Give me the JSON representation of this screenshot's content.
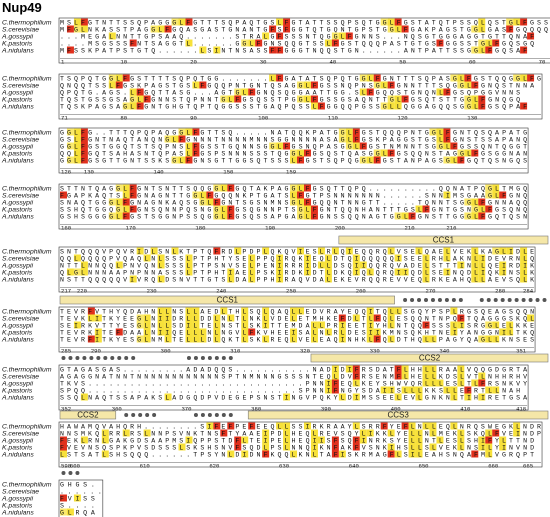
{
  "title": "Nup49",
  "species": [
    "C.thermophilium",
    "S.cerevisiae",
    "A.gossypii",
    "K.pastoris",
    "A.nidulans"
  ],
  "blocks": [
    {
      "rows": [
        "MSLFGTNTTSSQPAGGGLFGTTTSQPAQTGSLFGTATTSSQPSQTGGLFGSTATQTPSSQLQSTGLFGSSA",
        "MFGLNKASSTPAGGLFGQASGASTGNANTGFSFGGTQTGQNTGPSTGGLFGAKPAGSTGGLGASFGQQQQ",
        "...MEGALNNTTGPSAAQ.......STRALGFSSSNTQGGLFGNNS...NQSGTGGGAGGTGTTQNAF",
        "....MSGSSSFNTSAGGTL......GGLFGNSQQGTSSLFGSTQQQPASTGTGSFGGSSTGLFGQSGQ",
        "MFSSKPATPSTGTQ......LSINTNSASSFFGGGTNQQSTGN......ANTPATTSSGGLFGQSAF"
      ],
      "ruler": [
        1,
        10,
        20,
        30,
        40,
        50,
        60,
        70
      ]
    },
    {
      "rows": [
        "TSQPQTGGLFGSTTTTSQPQTGG.......LFGATATSQPQTGGLFGNTTTSQPASGLFGSTQQGGLFG",
        "QNQQTSSLFGSKPAGSTGSLFGQQPNTGNTQSAGGLFGSSNQPNSGLFGNNTTTSQGGLFGNQSTNNA",
        "QPQTG.AGS.LFGQTTASG...AGTGLFGNQSQGGAATTGG.SLFGQQSTGNQNLFGSQPGGVNNS",
        "TQSTGSSGSAGLFGNNSTQPNNTGLFGSQSSTPGGLFGSSGSAQNTTGLFGSQTSTTGGLFGNQGQ",
        "TQSKPAGSAGLFGNTGHGTQPTQGGSSSTGAQPQSSLFGGQQPGSSGLLQGGAGQQSGGLFGSQPAF"
      ],
      "ruler": [
        71,
        80,
        90,
        100,
        110,
        120,
        130
      ]
    },
    {
      "rows": [
        "GGLFG..TTTQPQPAQGGLFGTTSQ.....NATQQKPATGGLFGSTQQQPNTGGLFGNTQSQAPATG",
        "GSLFGNTNAQTANQNGLFGNNNTNNNNMNNSGGNNNNASAGLFGSKPAGGSTGSLFGNSTSSAPANQ",
        "GGLFGSTGGQTSTSQPNSLFGSSTGQNNSGGLFGSNQPASGGLFGSTNMNNTSGGLFGSSQNTQGGT",
        "QQLFGQTSAHASNTQPASLFGSPSNNNSSSTQGGLFGSQSTQASGGLFGSQQNSTAGGLFGSGGNAN",
        "GGLFGSGTTGNTSSKSGLFGNSGTTGGSQTSSSLFGSTSQPQGGLFGSTANPAGSGLFGQTQSNGQS"
      ],
      "ruler": [
        126,
        130,
        140,
        150,
        159
      ]
    },
    {
      "rows": [
        "STTNTQAGGLFGNTSNTTSQQGGLFGQTAKPAGGLFGSQTTQPQ..........QQNATPQGLTMGQ",
        "FGAPKAQTSLFGNAGNTTGGLFGQQNKPTGATSLFGTPSNNNNNNN......SNNIMSGAAGLFGNQ",
        "SNAQTGGGLFGNAGNKAQSGGLFGNTSGSNMNSGLFGQQNTNNGTT.....TQNNTSGGLFGNNAQQ",
        "SSHQTGGQGLFGNSQNNPQSNGGLFGSQGNNPTSGLFGNTQQNHANTTTGSLFGNTGSNGLFGSQNQ",
        "GSHSGGGGLFGSTSGGNPSSQGGLFGSQSSAPGAGLFGNSSQQNAGTGGLFGNSTTGGGLFGQTQSN"
      ],
      "ruler": [
        160,
        170,
        180,
        190,
        200,
        210,
        216
      ]
    },
    {
      "rows": [
        "SNTQQQVPQVRIDLSNLKTPTQFRDLPDPLQKQVIESLRLQIEQQRQLVSELQAELVEKLKAGLIDLE",
        "QQLQQQQPVQAQLNLSSSLPTPHTYSELPPQIRQKIEQLDTQIQQQQQISEELRHLAKNLIDEVRNLQ",
        "NTTLNNQQLPNVQNLSSSLPTPSNVSELPENIRRRIDLLDSQIIQQRQVADELSTTTINLLQEIRDIK",
        "QLGLNNNAAPNPNNASSSLPTPHTIAELPSKIRDKIDTLDKQIQLQRQIIQDLSEINQDLIQKINSLK",
        "NSTTQQQQQVIVRQLDSNVTTGTSLDALPPHIRAQVDALEKEVRQQREVVEQLRKEAHQLLAEVSQLK"
      ],
      "ruler": [
        217,
        220,
        230,
        240,
        250,
        260,
        270,
        280,
        284
      ],
      "annotations": [
        "CCS1"
      ]
    },
    {
      "rows": [
        "TEVRFVTHYQDAHNLLNSLLAEDLTHLSQLQAQLLEDVRAYEQQITQLLSGQYPSPLRGSQEAGSQQN",
        "TEVKLITKYEEGLNIIDRLLDDLNLTLNKLVDELETMHKEFDLTLFQLESQQNTNPQFTQAGGGSKQL",
        "SEIRKVTTYESGLNLLSDILTELNSTLSKITTEMDALLPRIEETIYHLNTQQFSSSLISRGGLELKKE",
        "TEVRKITEFDAALNIIQELLLNLNGVLFKVHEEISALNLRLDESIIKMNSQKHTNEIYANGGNILTKQ",
        "TEVRFITKYESGLNMLTELLLDLQKTLSKLREQLVELEAQINHKLFQLDTHQLLPAGYQAGLLKNSES"
      ],
      "ruler": [
        285,
        290,
        300,
        310,
        320,
        330,
        340,
        351
      ],
      "annotations": [
        "CCS1"
      ]
    },
    {
      "rows": [
        "GTAGASGAS.........ADADQQS...........NADIDIFRSDATFLHHLLRAALVQQGDGRTA",
        "AGAGGNATNNTNNNNNNNNNNNNSPTNMNNNGSSSNTEQLDVFRSENMFLHELLKDSLVTLNHHRHV",
        "TKVS...............................PNNIFEQLKEYSHWVQRLLLESLTLFRSNKVY",
        "SPQQ..............................SPNNIFNGYSDAIISLLLKKSLLEFRTLLNAH",
        "SSQLNAQTSSAPAKSLADGQDPVDEGEPSNSTINGVPQKYLDIMSSEELEVLGNKNLTIHIRETGSA"
      ],
      "ruler": [
        352,
        360,
        370,
        380,
        390,
        400,
        410,
        418
      ],
      "annotations": [
        "CCS2"
      ]
    },
    {
      "rows": [
        "HAWAMQVAHQRH........SIFEFPEFEEQLLSSIRKRAAYLSRRFYEFLNLLEQLNRQSWEGKLNDR",
        "NNSMKQLRRLRSLNNPSVNKTNSFTYAAEIPDLHEQLREVSQYLIKKLYELLNLMEKLSKQLFVEINDP",
        "FEKLRNLGAKGDSAAPMSIQPPSTDFLTEIPELHEQIISFSQFINRKSYELLNTLESLSHIFYLTTND",
        "FVEVNSQSPKPVSDSSSLSKSHSNVFSQDLPSLNNQIKNFAKFVSNKIHSLLSLVEKLNSILYINVND",
        "LSTSATLSHSQQQ......TPSYNLDIDNFKQQLKNLTAFISKRMAGFLSILEAHSNQAFMLVGRQPT"
      ],
      "ruler": [
        598,
        600,
        610,
        620,
        630,
        640,
        650,
        660,
        665
      ],
      "annotations": [
        "CCS2",
        "CCS3"
      ]
    },
    {
      "rows": [
        "GHGS.",
        "......",
        "FVISS",
        "S....",
        "GLRQA"
      ],
      "ruler": [
        667,
        670
      ]
    }
  ]
}
